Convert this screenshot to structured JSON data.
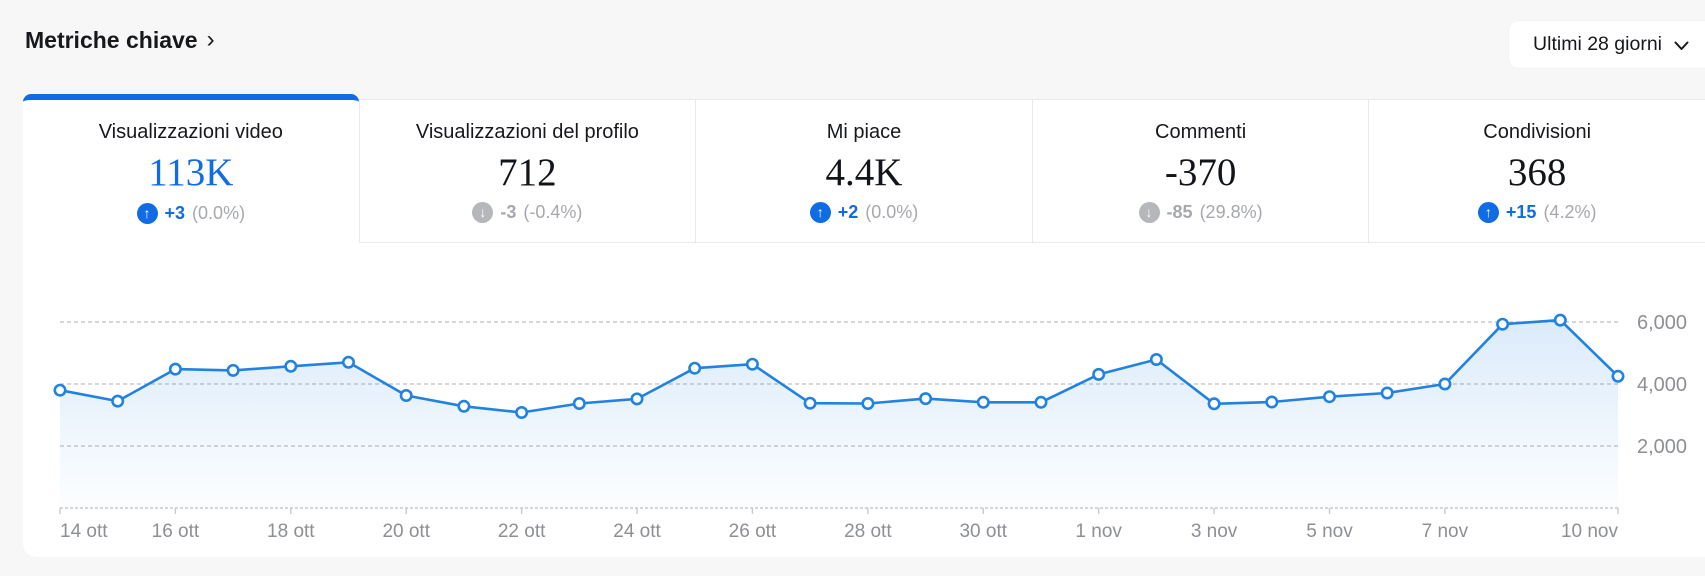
{
  "header": {
    "title": "Metriche chiave",
    "title_chevron": "›",
    "range_selector": {
      "label": "Ultimi 28 giorni"
    }
  },
  "icons": {
    "up_arrow": "↑",
    "down_arrow": "↓"
  },
  "tabs": [
    {
      "label": "Visualizzazioni video",
      "value": "113K",
      "delta": "+3",
      "delta_pct": "(0.0%)",
      "direction": "up",
      "active": true
    },
    {
      "label": "Visualizzazioni del profilo",
      "value": "712",
      "delta": "-3",
      "delta_pct": "(-0.4%)",
      "direction": "down",
      "active": false
    },
    {
      "label": "Mi piace",
      "value": "4.4K",
      "delta": "+2",
      "delta_pct": "(0.0%)",
      "direction": "up",
      "active": false
    },
    {
      "label": "Commenti",
      "value": "-370",
      "delta": "-85",
      "delta_pct": "(29.8%)",
      "direction": "down",
      "active": false
    },
    {
      "label": "Condivisioni",
      "value": "368",
      "delta": "+15",
      "delta_pct": "(4.2%)",
      "direction": "up",
      "active": false
    }
  ],
  "chart_data": {
    "type": "line",
    "title": "",
    "xlabel": "",
    "ylabel": "",
    "legend": "none",
    "grid": "dashed-horizontal",
    "ylim": [
      0,
      7900
    ],
    "categories": [
      "14 ott",
      "15 ott",
      "16 ott",
      "17 ott",
      "18 ott",
      "19 ott",
      "20 ott",
      "21 ott",
      "22 ott",
      "23 ott",
      "24 ott",
      "25 ott",
      "26 ott",
      "27 ott",
      "28 ott",
      "29 ott",
      "30 ott",
      "31 ott",
      "1 nov",
      "2 nov",
      "3 nov",
      "4 nov",
      "5 nov",
      "6 nov",
      "7 nov",
      "8 nov",
      "9 nov",
      "10 nov"
    ],
    "series": [
      {
        "name": "Visualizzazioni video",
        "values": [
          3800,
          3450,
          4480,
          4440,
          4570,
          4700,
          3630,
          3280,
          3080,
          3370,
          3520,
          4510,
          4640,
          3380,
          3370,
          3530,
          3410,
          3410,
          4310,
          4790,
          3360,
          3420,
          3590,
          3710,
          4000,
          5930,
          6060,
          4250
        ]
      }
    ],
    "x_ticks": [
      {
        "index": 0,
        "label": "14 ott"
      },
      {
        "index": 2,
        "label": "16 ott"
      },
      {
        "index": 4,
        "label": "18 ott"
      },
      {
        "index": 6,
        "label": "20 ott"
      },
      {
        "index": 8,
        "label": "22 ott"
      },
      {
        "index": 10,
        "label": "24 ott"
      },
      {
        "index": 12,
        "label": "26 ott"
      },
      {
        "index": 14,
        "label": "28 ott"
      },
      {
        "index": 16,
        "label": "30 ott"
      },
      {
        "index": 18,
        "label": "1 nov"
      },
      {
        "index": 20,
        "label": "3 nov"
      },
      {
        "index": 22,
        "label": "5 nov"
      },
      {
        "index": 24,
        "label": "7 nov"
      },
      {
        "index": 27,
        "label": "10 nov"
      }
    ],
    "y_ticks": [
      {
        "value": 2000,
        "label": "2,000"
      },
      {
        "value": 4000,
        "label": "4,000"
      },
      {
        "value": 6000,
        "label": "6,000"
      }
    ]
  },
  "colors": {
    "accent": "#0f6ce4",
    "line": "#2182e2",
    "area_top": "rgba(33,130,226,0.16)",
    "area_bottom": "rgba(33,130,226,0.01)",
    "grid": "#c9cacc",
    "axis_text": "#8d8f94",
    "down_icon_bg": "#b5b7ba",
    "page_bg": "#f7f7f8",
    "card_bg": "#ffffff"
  }
}
